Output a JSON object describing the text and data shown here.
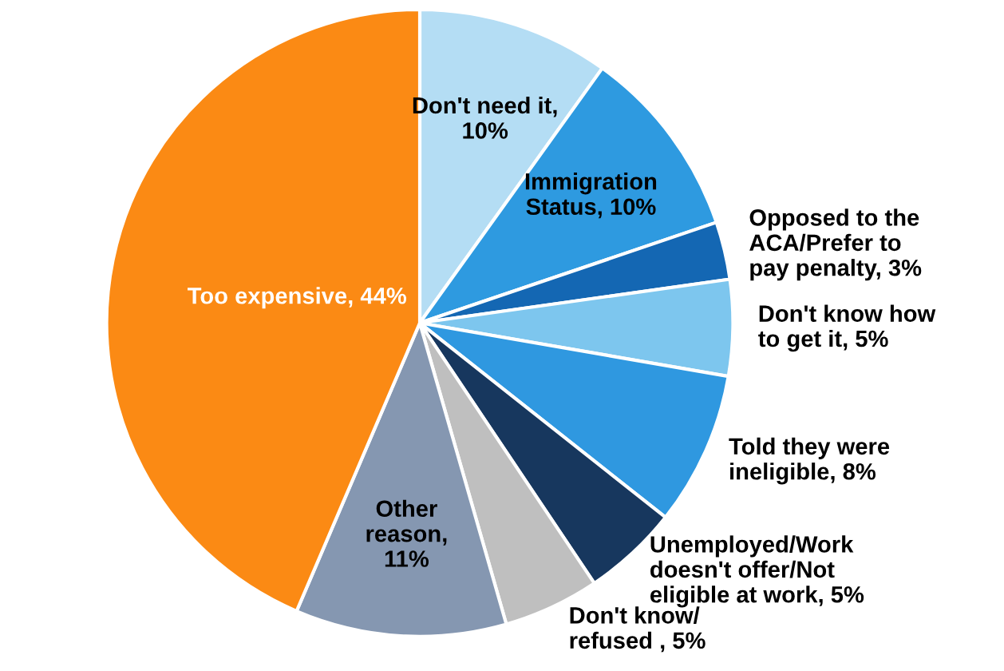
{
  "chart_data": {
    "type": "pie",
    "categories": [
      "Don't need it,\n10%",
      "Immigration\nStatus, 10%",
      "Opposed to the\nACA/Prefer to\npay penalty, 3%",
      "Don't know how\nto get it, 5%",
      "Told they were\nineligible, 8%",
      "Unemployed/Work\ndoesn't offer/Not\neligible at work, 5%",
      "Don't know/\nrefused , 5%",
      "Other\nreason,\n11%",
      "Too expensive, 44%"
    ],
    "values": [
      10,
      10,
      3,
      5,
      8,
      5,
      5,
      11,
      44
    ],
    "colors": [
      "#b4ddf4",
      "#2e9ae0",
      "#1467b3",
      "#7dc6ee",
      "#2f98e0",
      "#17375e",
      "#bfbfbf",
      "#8597b1",
      "#fb8a14"
    ],
    "legend": false
  }
}
